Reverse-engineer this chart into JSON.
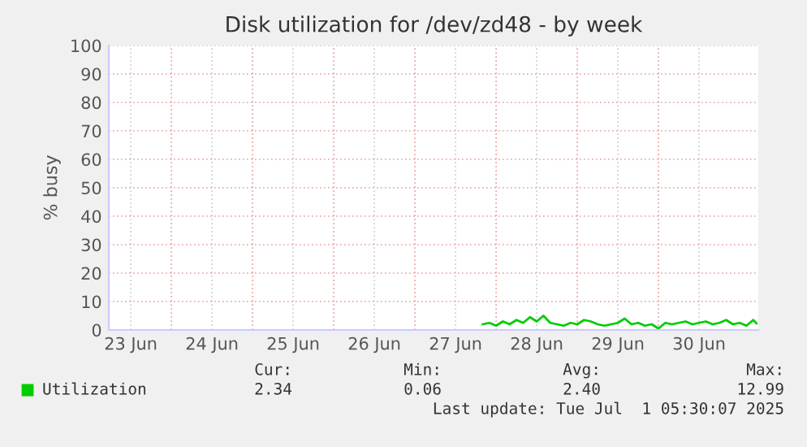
{
  "chart_data": {
    "type": "line",
    "title": "Disk utilization for /dev/zd48 - by week",
    "ylabel": "% busy",
    "xlim": [
      "2025-06-23T05:30",
      "2025-07-01T05:30"
    ],
    "ylim": [
      0,
      100
    ],
    "yticks": [
      0,
      10,
      20,
      30,
      40,
      50,
      60,
      70,
      80,
      90,
      100
    ],
    "xticks": [
      {
        "value": "2025-06-23T12:00",
        "label": "23 Jun"
      },
      {
        "value": "2025-06-24T12:00",
        "label": "24 Jun"
      },
      {
        "value": "2025-06-25T12:00",
        "label": "25 Jun"
      },
      {
        "value": "2025-06-26T12:00",
        "label": "26 Jun"
      },
      {
        "value": "2025-06-27T12:00",
        "label": "27 Jun"
      },
      {
        "value": "2025-06-28T12:00",
        "label": "28 Jun"
      },
      {
        "value": "2025-06-29T12:00",
        "label": "29 Jun"
      },
      {
        "value": "2025-06-30T12:00",
        "label": "30 Jun"
      }
    ],
    "x": [
      "2025-06-27T20:00",
      "2025-06-27T22:00",
      "2025-06-28T00:00",
      "2025-06-28T02:00",
      "2025-06-28T04:00",
      "2025-06-28T06:00",
      "2025-06-28T08:00",
      "2025-06-28T10:00",
      "2025-06-28T12:00",
      "2025-06-28T14:00",
      "2025-06-28T16:00",
      "2025-06-28T18:00",
      "2025-06-28T20:00",
      "2025-06-28T22:00",
      "2025-06-29T00:00",
      "2025-06-29T02:00",
      "2025-06-29T04:00",
      "2025-06-29T06:00",
      "2025-06-29T08:00",
      "2025-06-29T10:00",
      "2025-06-29T12:00",
      "2025-06-29T14:00",
      "2025-06-29T16:00",
      "2025-06-29T18:00",
      "2025-06-29T20:00",
      "2025-06-29T22:00",
      "2025-06-30T00:00",
      "2025-06-30T02:00",
      "2025-06-30T04:00",
      "2025-06-30T06:00",
      "2025-06-30T08:00",
      "2025-06-30T10:00",
      "2025-06-30T12:00",
      "2025-06-30T14:00",
      "2025-06-30T16:00",
      "2025-06-30T18:00",
      "2025-06-30T20:00",
      "2025-06-30T22:00",
      "2025-07-01T00:00",
      "2025-07-01T02:00",
      "2025-07-01T04:00",
      "2025-07-01T05:00"
    ],
    "series": [
      {
        "name": "Utilization",
        "color": "#00cc00",
        "values": [
          2.0,
          2.5,
          1.5,
          3.0,
          2.0,
          3.5,
          2.5,
          4.5,
          3.0,
          5.0,
          2.5,
          2.0,
          1.5,
          2.5,
          2.0,
          3.5,
          3.0,
          2.0,
          1.5,
          2.0,
          2.5,
          4.0,
          2.0,
          2.5,
          1.5,
          2.0,
          0.5,
          2.5,
          2.0,
          2.5,
          3.0,
          2.0,
          2.5,
          3.0,
          2.0,
          2.5,
          3.5,
          2.0,
          2.5,
          1.5,
          3.5,
          2.3
        ]
      }
    ],
    "grid": true,
    "legend": "bottom left",
    "annotations": [
      "Cur:",
      "Min:",
      "Avg:",
      "Max:",
      "2.34",
      "0.06",
      "2.40",
      "12.99",
      "Last update: Tue Jul  1 05:30:07 2025"
    ]
  }
}
